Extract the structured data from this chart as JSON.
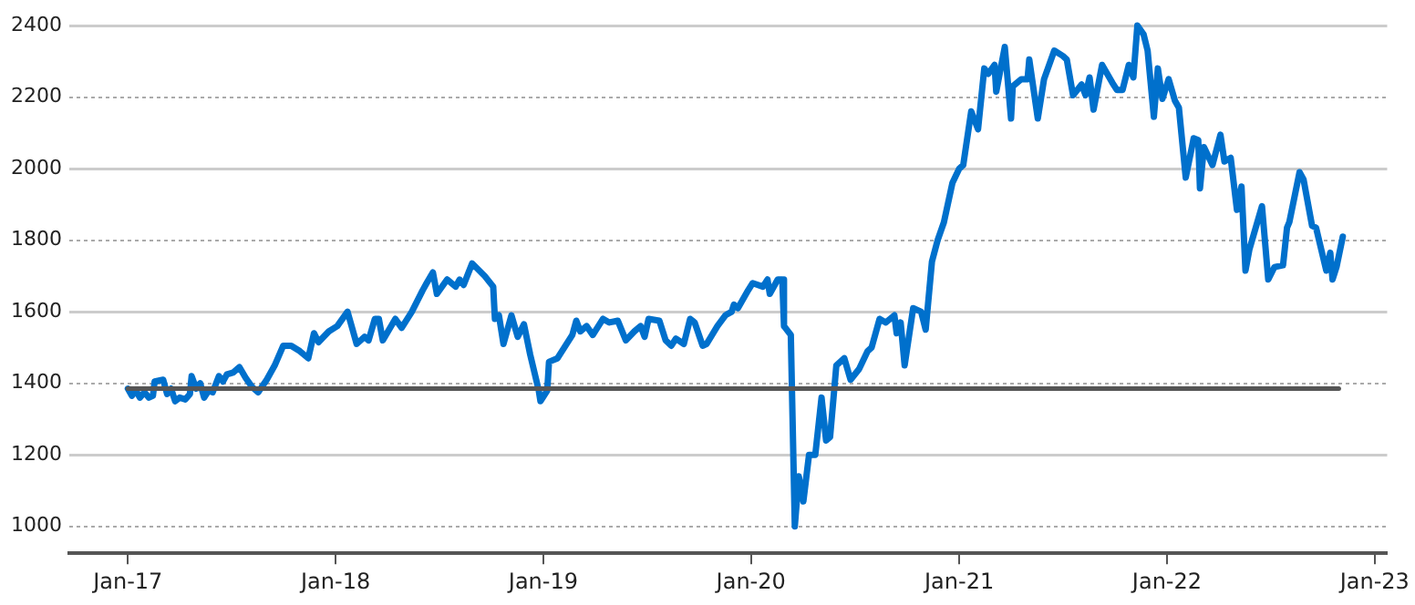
{
  "chart_data": {
    "type": "line",
    "xlim": [
      "2016-09-20",
      "2023-01-23"
    ],
    "ylim": [
      925,
      2400
    ],
    "xticks": [
      {
        "value": "2017-01",
        "label": "Jan-17"
      },
      {
        "value": "2018-01",
        "label": "Jan-18"
      },
      {
        "value": "2019-01",
        "label": "Jan-19"
      },
      {
        "value": "2020-01",
        "label": "Jan-20"
      },
      {
        "value": "2021-01",
        "label": "Jan-21"
      },
      {
        "value": "2022-01",
        "label": "Jan-22"
      },
      {
        "value": "2023-01",
        "label": "Jan-23"
      }
    ],
    "yticks": [
      1000,
      1200,
      1400,
      1600,
      1800,
      2000,
      2200,
      2400
    ],
    "grid": "y",
    "legend": false,
    "marker": "none",
    "line_style": "solid",
    "series": [
      {
        "color": "#0070cc",
        "x": [
          "2017-01-01",
          "2017-01-08",
          "2017-01-15",
          "2017-01-22",
          "2017-01-30",
          "2017-02-07",
          "2017-02-14",
          "2017-02-17",
          "2017-03-04",
          "2017-03-11",
          "2017-03-18",
          "2017-03-25",
          "2017-04-02",
          "2017-04-12",
          "2017-04-20",
          "2017-04-23",
          "2017-05-01",
          "2017-05-08",
          "2017-05-15",
          "2017-05-23",
          "2017-05-30",
          "2017-06-10",
          "2017-06-17",
          "2017-06-24",
          "2017-07-05",
          "2017-07-16",
          "2017-07-27",
          "2017-08-07",
          "2017-08-18",
          "2017-09-02",
          "2017-09-16",
          "2017-10-01",
          "2017-10-15",
          "2017-10-30",
          "2017-11-14",
          "2017-11-24",
          "2017-12-02",
          "2017-12-20",
          "2018-01-04",
          "2018-01-22",
          "2018-02-07",
          "2018-02-21",
          "2018-02-28",
          "2018-03-11",
          "2018-03-18",
          "2018-03-25",
          "2018-04-16",
          "2018-04-27",
          "2018-05-15",
          "2018-06-03",
          "2018-06-10",
          "2018-06-21",
          "2018-06-28",
          "2018-07-16",
          "2018-07-31",
          "2018-08-07",
          "2018-08-14",
          "2018-08-29",
          "2018-09-20",
          "2018-10-05",
          "2018-10-08",
          "2018-10-15",
          "2018-10-23",
          "2018-11-06",
          "2018-11-17",
          "2018-11-28",
          "2018-12-09",
          "2018-12-24",
          "2018-12-27",
          "2019-01-08",
          "2019-01-11",
          "2019-01-26",
          "2019-02-21",
          "2019-02-28",
          "2019-03-07",
          "2019-03-18",
          "2019-03-29",
          "2019-04-16",
          "2019-04-27",
          "2019-05-12",
          "2019-05-26",
          "2019-06-10",
          "2019-06-21",
          "2019-06-28",
          "2019-07-05",
          "2019-07-24",
          "2019-08-04",
          "2019-08-14",
          "2019-08-22",
          "2019-09-05",
          "2019-09-16",
          "2019-09-24",
          "2019-10-08",
          "2019-10-15",
          "2019-11-03",
          "2019-11-17",
          "2019-11-28",
          "2019-12-02",
          "2019-12-09",
          "2019-12-27",
          "2020-01-04",
          "2020-01-22",
          "2020-01-30",
          "2020-02-03",
          "2020-02-17",
          "2020-02-25",
          "2020-02-28",
          "2020-03-11",
          "2020-03-18",
          "2020-03-25",
          "2020-04-02",
          "2020-04-12",
          "2020-04-23",
          "2020-05-04",
          "2020-05-12",
          "2020-05-19",
          "2020-05-30",
          "2020-06-13",
          "2020-06-24",
          "2020-07-09",
          "2020-07-24",
          "2020-07-31",
          "2020-08-14",
          "2020-08-25",
          "2020-09-09",
          "2020-09-13",
          "2020-09-20",
          "2020-09-27",
          "2020-10-12",
          "2020-10-26",
          "2020-11-03",
          "2020-11-14",
          "2020-11-24",
          "2020-12-05",
          "2020-12-20",
          "2021-01-01",
          "2021-01-08",
          "2021-01-22",
          "2021-02-03",
          "2021-02-14",
          "2021-02-21",
          "2021-03-04",
          "2021-03-07",
          "2021-03-22",
          "2021-04-02",
          "2021-04-05",
          "2021-04-20",
          "2021-05-01",
          "2021-05-04",
          "2021-05-19",
          "2021-05-30",
          "2021-06-17",
          "2021-07-02",
          "2021-07-09",
          "2021-07-20",
          "2021-08-04",
          "2021-08-11",
          "2021-08-18",
          "2021-08-25",
          "2021-09-09",
          "2021-09-27",
          "2021-10-05",
          "2021-10-15",
          "2021-10-26",
          "2021-11-03",
          "2021-11-10",
          "2021-11-21",
          "2021-11-28",
          "2021-12-09",
          "2021-12-16",
          "2021-12-24",
          "2022-01-04",
          "2022-01-15",
          "2022-01-22",
          "2022-02-03",
          "2022-02-17",
          "2022-02-25",
          "2022-02-28",
          "2022-03-07",
          "2022-03-22",
          "2022-04-05",
          "2022-04-12",
          "2022-04-23",
          "2022-05-04",
          "2022-05-12",
          "2022-05-19",
          "2022-05-26",
          "2022-06-17",
          "2022-06-28",
          "2022-07-09",
          "2022-07-24",
          "2022-07-31",
          "2022-08-04",
          "2022-08-22",
          "2022-08-29",
          "2022-09-13",
          "2022-09-20",
          "2022-10-08",
          "2022-10-15",
          "2022-10-19",
          "2022-10-26",
          "2022-11-06"
        ],
        "values": [
          1385,
          1365,
          1380,
          1360,
          1375,
          1360,
          1365,
          1405,
          1410,
          1370,
          1385,
          1350,
          1360,
          1355,
          1370,
          1420,
          1385,
          1400,
          1360,
          1380,
          1375,
          1420,
          1405,
          1425,
          1430,
          1445,
          1415,
          1390,
          1375,
          1410,
          1450,
          1505,
          1505,
          1490,
          1470,
          1540,
          1515,
          1545,
          1560,
          1600,
          1510,
          1530,
          1520,
          1580,
          1580,
          1520,
          1580,
          1555,
          1600,
          1660,
          1680,
          1710,
          1650,
          1690,
          1670,
          1690,
          1675,
          1735,
          1700,
          1670,
          1580,
          1590,
          1510,
          1590,
          1530,
          1565,
          1480,
          1380,
          1350,
          1380,
          1460,
          1470,
          1535,
          1575,
          1545,
          1560,
          1535,
          1580,
          1570,
          1575,
          1520,
          1545,
          1560,
          1530,
          1580,
          1575,
          1520,
          1505,
          1525,
          1510,
          1580,
          1570,
          1505,
          1510,
          1560,
          1590,
          1600,
          1620,
          1610,
          1660,
          1680,
          1670,
          1690,
          1650,
          1690,
          1690,
          1560,
          1535,
          1000,
          1140,
          1070,
          1200,
          1200,
          1360,
          1240,
          1250,
          1450,
          1470,
          1410,
          1440,
          1490,
          1500,
          1580,
          1570,
          1590,
          1540,
          1570,
          1450,
          1610,
          1600,
          1550,
          1740,
          1800,
          1850,
          1960,
          2000,
          2010,
          2160,
          2110,
          2280,
          2265,
          2290,
          2215,
          2340,
          2140,
          2230,
          2250,
          2250,
          2305,
          2140,
          2250,
          2330,
          2315,
          2305,
          2205,
          2235,
          2205,
          2255,
          2165,
          2290,
          2240,
          2220,
          2220,
          2290,
          2255,
          2400,
          2375,
          2330,
          2145,
          2280,
          2195,
          2250,
          2190,
          2170,
          1975,
          2085,
          2080,
          1945,
          2060,
          2010,
          2095,
          2020,
          2030,
          1885,
          1950,
          1715,
          1775,
          1895,
          1690,
          1725,
          1730,
          1835,
          1850,
          1990,
          1970,
          1840,
          1835,
          1715,
          1765,
          1690,
          1725,
          1810
        ]
      },
      {
        "color": "#555555",
        "x": [
          "2017-01-01",
          "2022-10-30"
        ],
        "values": [
          1385,
          1385
        ]
      }
    ]
  }
}
